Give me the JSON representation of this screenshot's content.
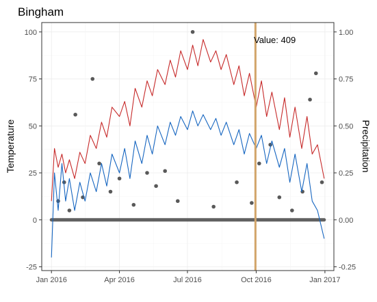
{
  "chart_data": {
    "type": "line",
    "title": "Bingham",
    "ylabel": "Temperature",
    "ylabel_right": "Precipitation",
    "xlabel": "",
    "x_ticks": [
      "Jan 2016",
      "Apr 2016",
      "Jul 2016",
      "Oct 2016",
      "Jan 2017"
    ],
    "x_tick_dates": [
      "2016-01-01",
      "2016-04-01",
      "2016-07-01",
      "2016-10-01",
      "2017-01-01"
    ],
    "x_range": [
      "2015-12-19",
      "2017-01-13"
    ],
    "ylim_left": [
      -27,
      105
    ],
    "y_ticks_left": [
      "-25",
      "0",
      "25",
      "50",
      "75",
      "100"
    ],
    "ylim_right": [
      -0.27,
      1.05
    ],
    "y_ticks_right": [
      "-0.25",
      "0.00",
      "0.25",
      "0.50",
      "0.75",
      "1.00"
    ],
    "grid": true,
    "legend": "none",
    "annotation": {
      "text": "Value: 409",
      "line_date": "2016-09-30"
    },
    "colors": {
      "max_temp": "#c62828",
      "min_temp": "#1565c0",
      "precip": "#595959",
      "vline": "#d2a56a"
    },
    "series": [
      {
        "kind": "line",
        "axis": "left",
        "color": "#c62828",
        "x": [
          "2016-01-01",
          "2016-01-05",
          "2016-01-10",
          "2016-01-15",
          "2016-01-20",
          "2016-01-25",
          "2016-02-01",
          "2016-02-08",
          "2016-02-15",
          "2016-02-22",
          "2016-03-01",
          "2016-03-08",
          "2016-03-15",
          "2016-03-22",
          "2016-04-01",
          "2016-04-08",
          "2016-04-15",
          "2016-04-22",
          "2016-05-01",
          "2016-05-08",
          "2016-05-15",
          "2016-05-22",
          "2016-06-01",
          "2016-06-08",
          "2016-06-15",
          "2016-06-22",
          "2016-07-01",
          "2016-07-08",
          "2016-07-15",
          "2016-07-22",
          "2016-08-01",
          "2016-08-08",
          "2016-08-15",
          "2016-08-22",
          "2016-09-01",
          "2016-09-08",
          "2016-09-15",
          "2016-09-22",
          "2016-10-01",
          "2016-10-08",
          "2016-10-15",
          "2016-10-22",
          "2016-11-01",
          "2016-11-08",
          "2016-11-15",
          "2016-11-22",
          "2016-12-01",
          "2016-12-08",
          "2016-12-15",
          "2016-12-22",
          "2016-12-31"
        ],
        "values": [
          10,
          38,
          28,
          35,
          25,
          32,
          22,
          36,
          30,
          45,
          38,
          52,
          44,
          60,
          55,
          63,
          50,
          70,
          60,
          74,
          66,
          80,
          72,
          85,
          76,
          90,
          80,
          93,
          82,
          96,
          84,
          90,
          80,
          88,
          72,
          82,
          66,
          78,
          60,
          74,
          55,
          68,
          48,
          65,
          44,
          60,
          38,
          55,
          35,
          40,
          22
        ]
      },
      {
        "kind": "line",
        "axis": "left",
        "color": "#1565c0",
        "x": [
          "2016-01-01",
          "2016-01-05",
          "2016-01-10",
          "2016-01-15",
          "2016-01-20",
          "2016-01-25",
          "2016-02-01",
          "2016-02-08",
          "2016-02-15",
          "2016-02-22",
          "2016-03-01",
          "2016-03-08",
          "2016-03-15",
          "2016-03-22",
          "2016-04-01",
          "2016-04-08",
          "2016-04-15",
          "2016-04-22",
          "2016-05-01",
          "2016-05-08",
          "2016-05-15",
          "2016-05-22",
          "2016-06-01",
          "2016-06-08",
          "2016-06-15",
          "2016-06-22",
          "2016-07-01",
          "2016-07-08",
          "2016-07-15",
          "2016-07-22",
          "2016-08-01",
          "2016-08-08",
          "2016-08-15",
          "2016-08-22",
          "2016-09-01",
          "2016-09-08",
          "2016-09-15",
          "2016-09-22",
          "2016-10-01",
          "2016-10-08",
          "2016-10-15",
          "2016-10-22",
          "2016-11-01",
          "2016-11-08",
          "2016-11-15",
          "2016-11-22",
          "2016-12-01",
          "2016-12-08",
          "2016-12-15",
          "2016-12-22",
          "2016-12-31"
        ],
        "values": [
          -20,
          25,
          5,
          30,
          10,
          22,
          5,
          20,
          10,
          25,
          15,
          30,
          18,
          35,
          25,
          38,
          22,
          42,
          30,
          45,
          35,
          50,
          40,
          52,
          45,
          55,
          48,
          58,
          50,
          56,
          48,
          54,
          45,
          52,
          40,
          48,
          35,
          46,
          38,
          45,
          30,
          42,
          28,
          38,
          20,
          35,
          15,
          30,
          10,
          5,
          -10
        ]
      },
      {
        "kind": "scatter",
        "axis": "right",
        "color": "#595959",
        "x": [
          "2016-01-10",
          "2016-01-18",
          "2016-01-25",
          "2016-02-02",
          "2016-02-12",
          "2016-02-25",
          "2016-03-05",
          "2016-03-20",
          "2016-04-01",
          "2016-04-20",
          "2016-05-08",
          "2016-05-20",
          "2016-06-01",
          "2016-06-18",
          "2016-07-08",
          "2016-08-05",
          "2016-09-05",
          "2016-09-25",
          "2016-10-05",
          "2016-10-20",
          "2016-11-01",
          "2016-11-18",
          "2016-12-02",
          "2016-12-12",
          "2016-12-20",
          "2016-12-28"
        ],
        "values": [
          0.1,
          0.2,
          0.05,
          0.56,
          0.12,
          0.75,
          0.3,
          0.15,
          0.22,
          0.08,
          0.25,
          0.18,
          0.26,
          0.1,
          1.0,
          0.07,
          0.2,
          0.09,
          0.3,
          0.4,
          0.12,
          0.05,
          0.15,
          0.64,
          0.78,
          0.2
        ]
      }
    ]
  }
}
